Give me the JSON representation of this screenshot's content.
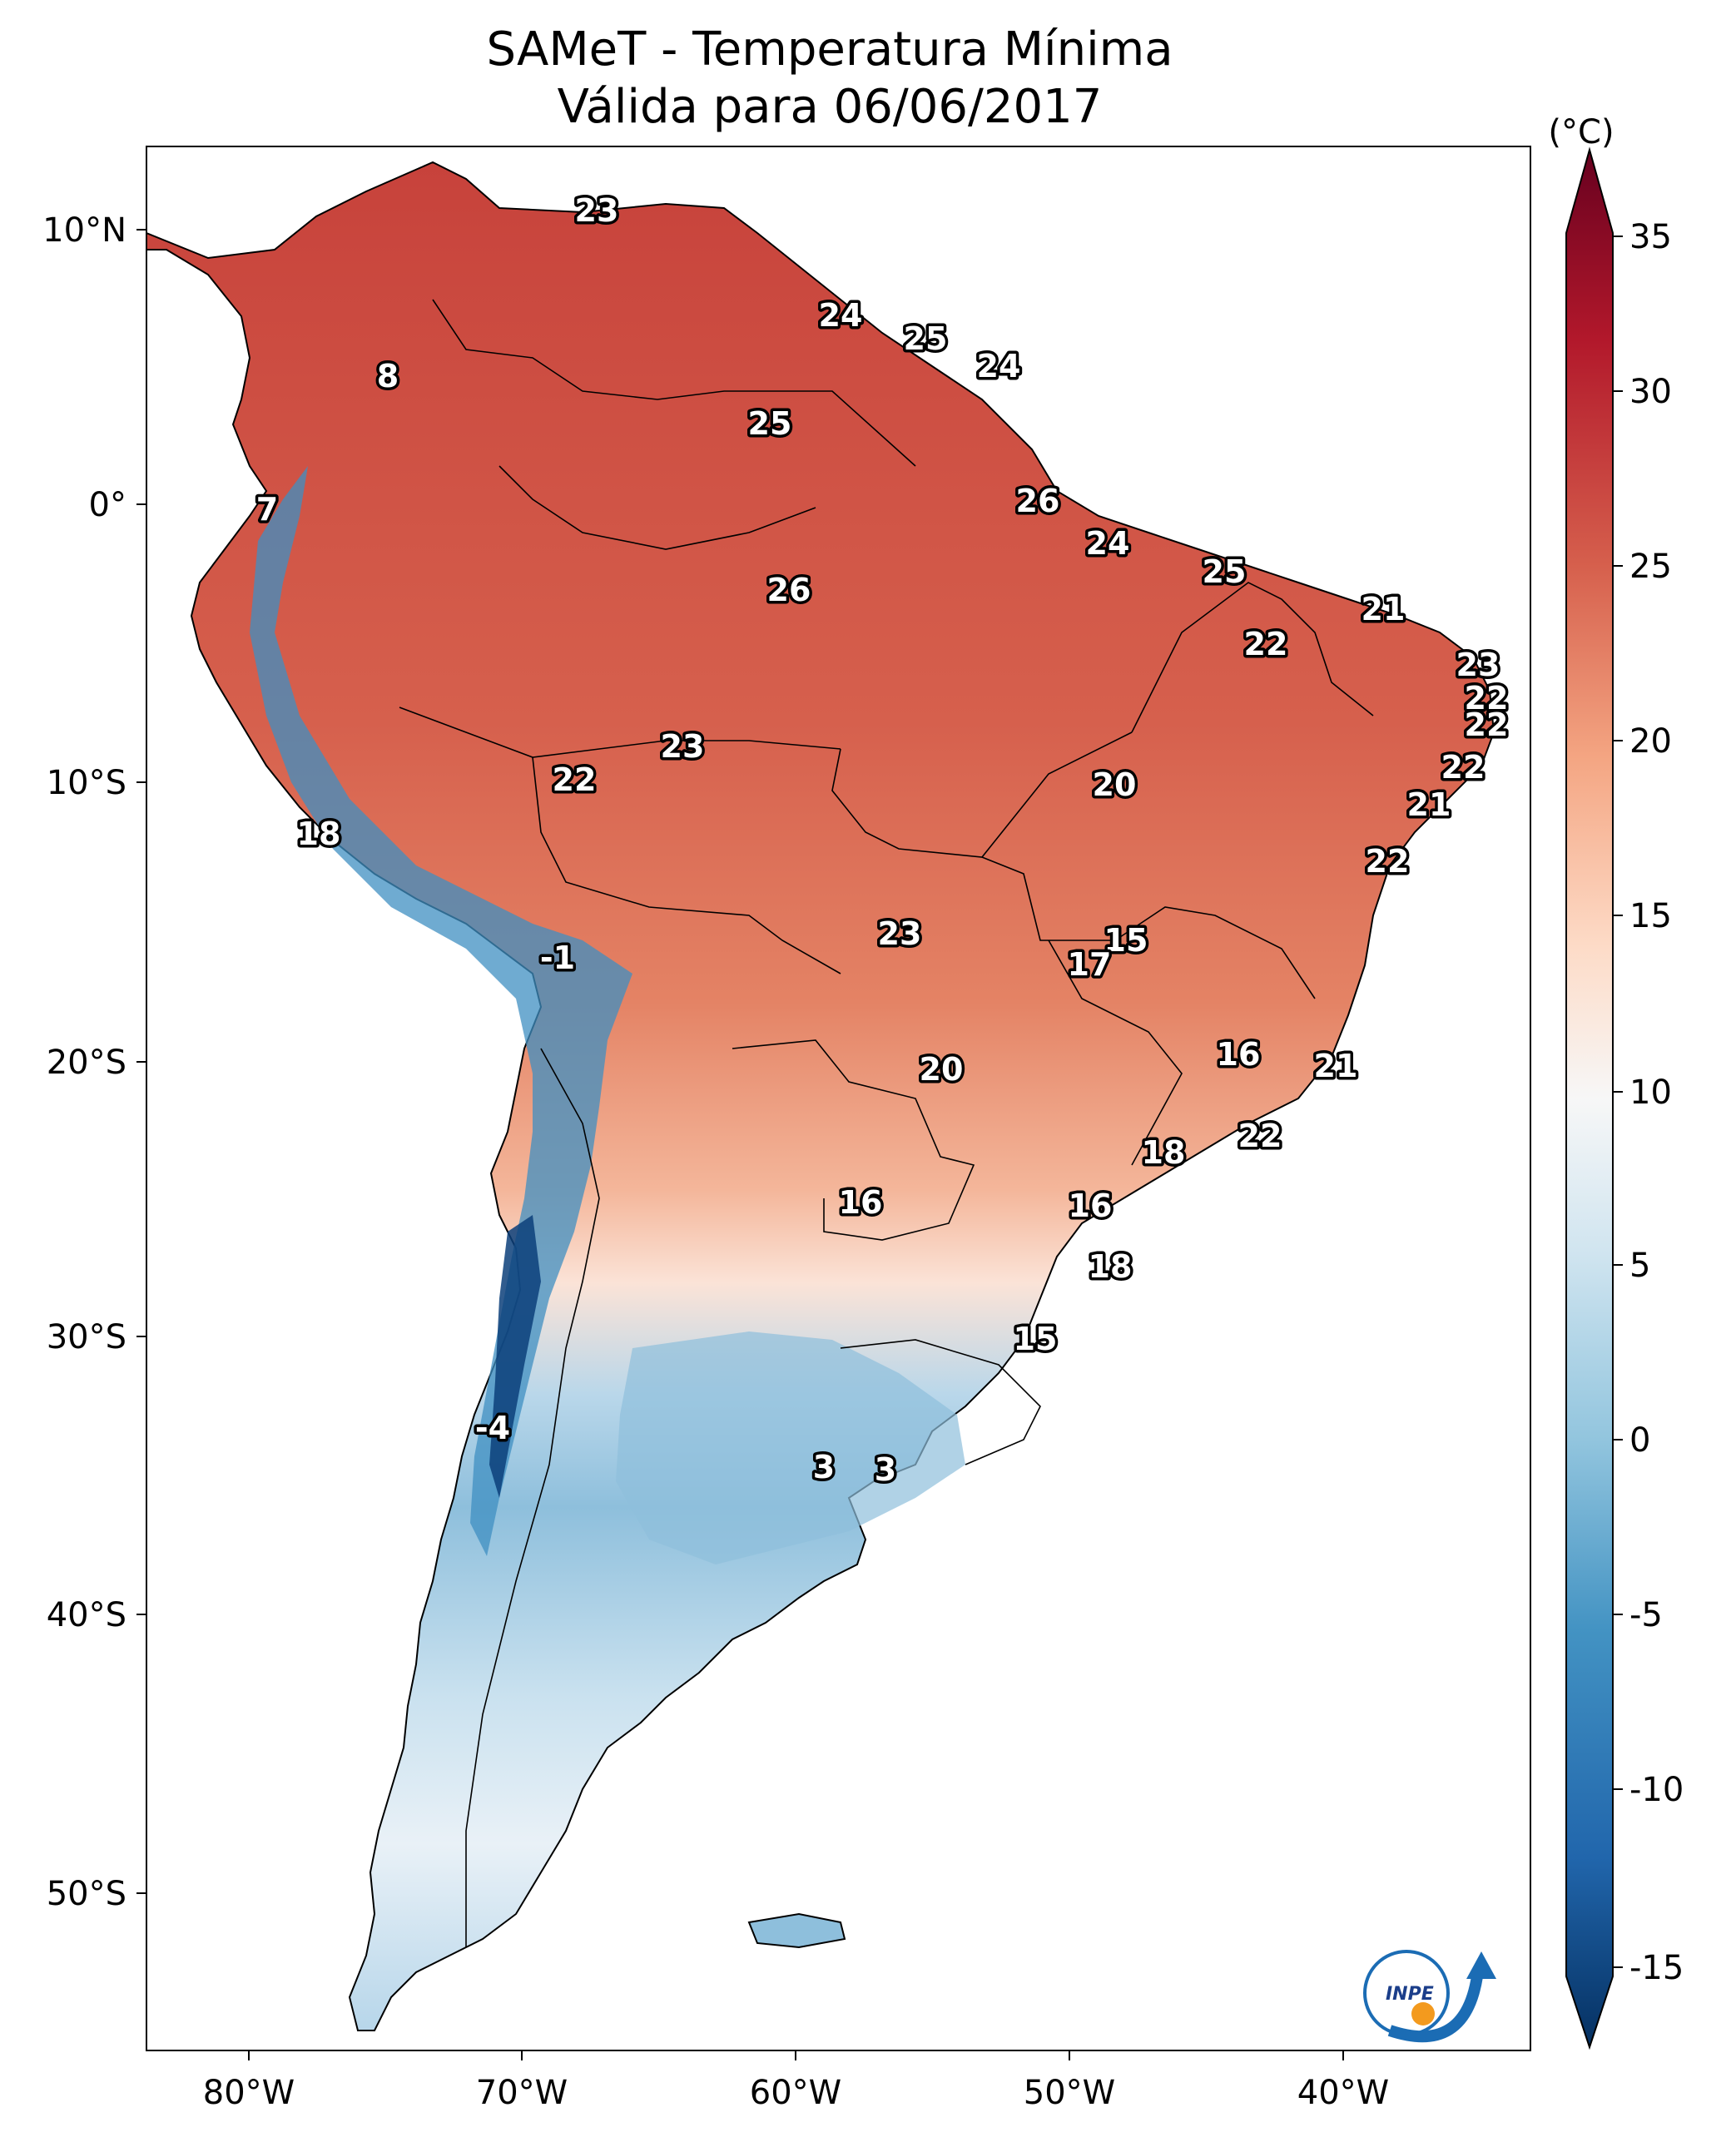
{
  "title": {
    "line1": "SAMeT - Temperatura Mínima",
    "line2": "Válida para 06/06/2017"
  },
  "axes": {
    "lon_labels": [
      "80°W",
      "70°W",
      "60°W",
      "50°W",
      "40°W"
    ],
    "lat_labels": [
      "10°N",
      "0°",
      "10°S",
      "20°S",
      "30°S",
      "40°S",
      "50°S"
    ]
  },
  "colorbar": {
    "unit": "(°C)",
    "ticks": [
      "35",
      "30",
      "25",
      "20",
      "15",
      "10",
      "5",
      "0",
      "-5",
      "-10",
      "-15"
    ],
    "colors": [
      "#053061",
      "#2166ac",
      "#4393c3",
      "#92c5de",
      "#d1e5f0",
      "#f7f7f7",
      "#fddbc7",
      "#f4a582",
      "#d6604d",
      "#b2182b",
      "#67001f"
    ]
  },
  "logo": {
    "text": "INPE"
  },
  "point_values": [
    {
      "label": "23"
    },
    {
      "label": "8"
    },
    {
      "label": "7"
    },
    {
      "label": "24"
    },
    {
      "label": "25"
    },
    {
      "label": "24"
    },
    {
      "label": "25"
    },
    {
      "label": "26"
    },
    {
      "label": "26"
    },
    {
      "label": "24"
    },
    {
      "label": "25"
    },
    {
      "label": "21"
    },
    {
      "label": "22"
    },
    {
      "label": "23"
    },
    {
      "label": "22"
    },
    {
      "label": "22"
    },
    {
      "label": "23"
    },
    {
      "label": "22"
    },
    {
      "label": "20"
    },
    {
      "label": "22"
    },
    {
      "label": "21"
    },
    {
      "label": "18"
    },
    {
      "label": "22"
    },
    {
      "label": "-1"
    },
    {
      "label": "23"
    },
    {
      "label": "15"
    },
    {
      "label": "17"
    },
    {
      "label": "16"
    },
    {
      "label": "21"
    },
    {
      "label": "20"
    },
    {
      "label": "22"
    },
    {
      "label": "18"
    },
    {
      "label": "16"
    },
    {
      "label": "16"
    },
    {
      "label": "18"
    },
    {
      "label": "15"
    },
    {
      "label": "-4"
    },
    {
      "label": "3"
    },
    {
      "label": "3"
    }
  ]
}
